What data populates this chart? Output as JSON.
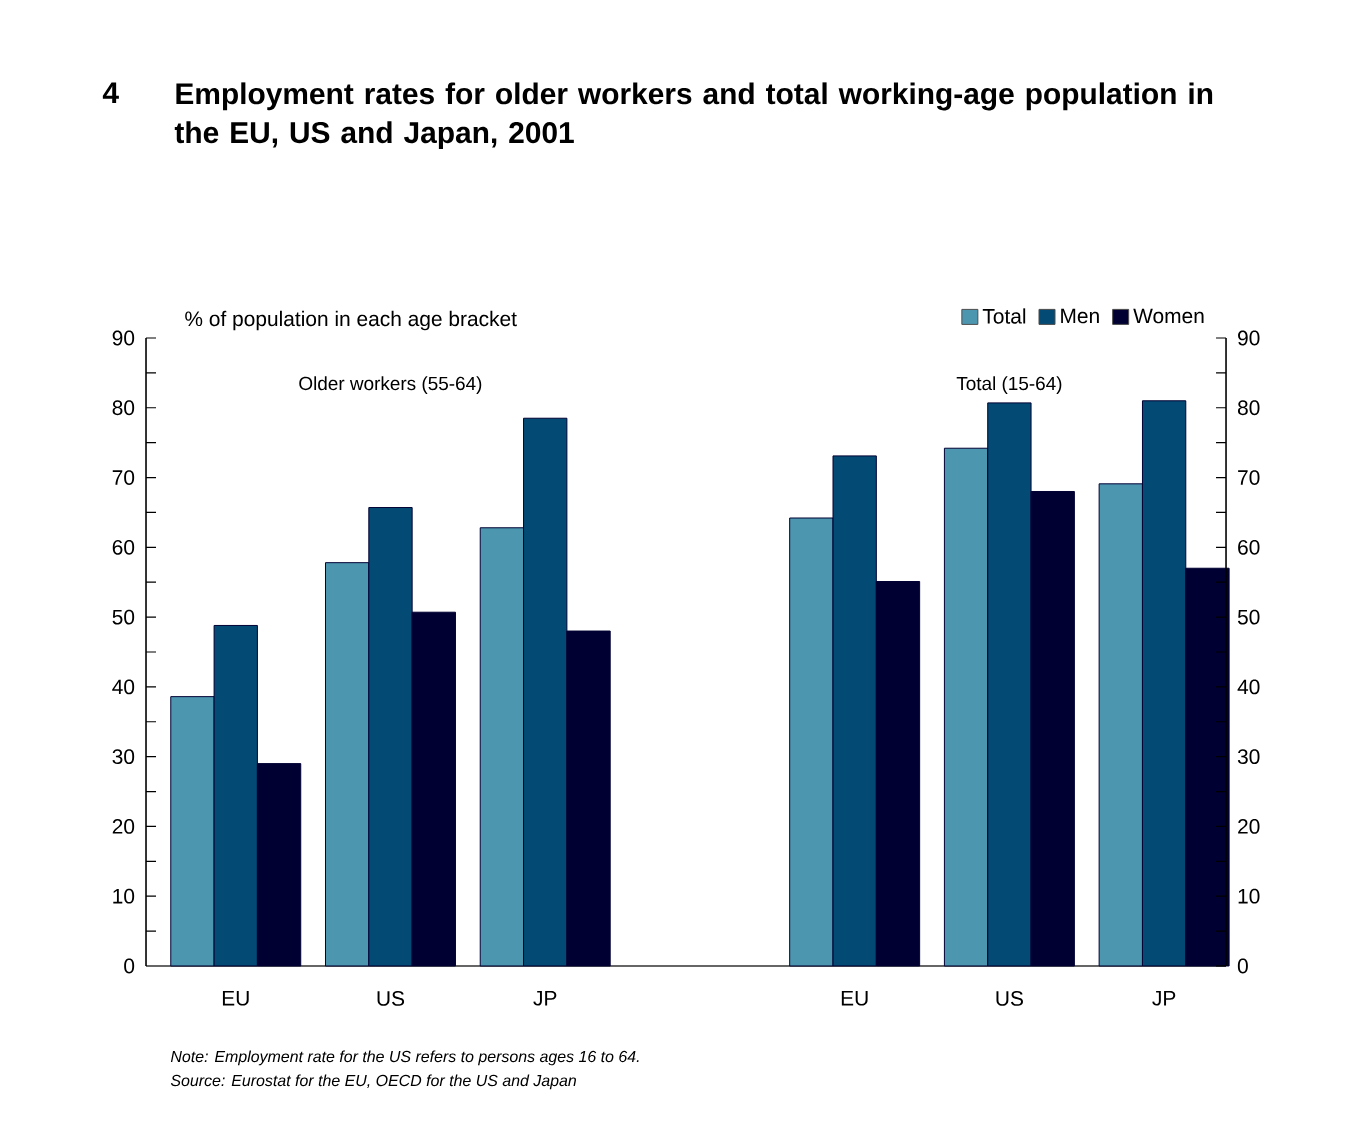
{
  "chart_data": {
    "type": "bar",
    "title": "Employment rates for older workers and total working-age population in the EU, US and Japan, 2001",
    "ylabel": "% of population in each age bracket",
    "annotations": [
      "4",
      "Older workers (55-64)",
      "Total (15-64)",
      "Note: Employment rate for the US refers to persons ages 16 to 64.",
      "Source: Eurostat for the EU, OECD for the US and Japan"
    ],
    "categories": [
      "EU",
      "US",
      "JP",
      null,
      "EU",
      "US",
      "JP"
    ],
    "series": [
      {
        "name": "Total",
        "color": "#4d96b0",
        "values": [
          38.6,
          57.8,
          62.8,
          null,
          64.2,
          74.2,
          69.1
        ]
      },
      {
        "name": "Men",
        "color": "#034b74",
        "values": [
          48.8,
          65.7,
          78.5,
          null,
          73.1,
          80.7,
          81.0
        ]
      },
      {
        "name": "Women",
        "color": "#000033",
        "values": [
          29.0,
          50.7,
          48.0,
          null,
          55.1,
          68.0,
          57.0
        ]
      }
    ],
    "ylim": [
      0,
      90
    ],
    "yticks": [
      0,
      10,
      20,
      30,
      40,
      50,
      60,
      70,
      80,
      90
    ],
    "y2lim": [
      0,
      90
    ],
    "y2ticks": [
      0,
      10,
      20,
      30,
      40,
      50,
      60,
      70,
      80,
      90
    ],
    "legend": "top right",
    "grid": false
  }
}
